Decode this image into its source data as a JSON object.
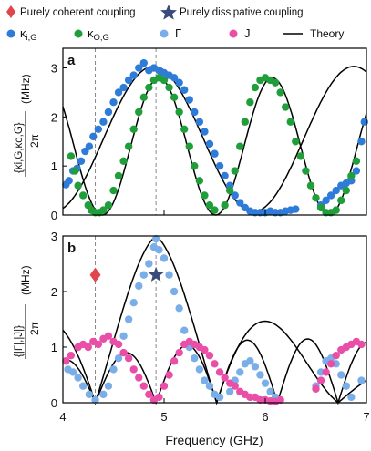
{
  "legend": {
    "row1": [
      {
        "symbol": "diamond",
        "color": "#e0474c",
        "label": "Purely coherent coupling"
      },
      {
        "symbol": "star",
        "color": "#3a4a7a",
        "label": "Purely dissipative coupling"
      }
    ],
    "row2": [
      {
        "symbol": "dot",
        "color": "#2f7bd8",
        "label": "κi,G"
      },
      {
        "symbol": "dot",
        "color": "#1f9e3a",
        "label": "κo,G"
      },
      {
        "symbol": "dot",
        "color": "#7aaee8",
        "label": "Γ"
      },
      {
        "symbol": "dot",
        "color": "#ea4fa8",
        "label": "J"
      },
      {
        "symbol": "line",
        "color": "#000000",
        "label": "Theory"
      }
    ]
  },
  "x_axis": {
    "label": "Frequency (GHz)",
    "ticks": [
      "4",
      "5",
      "6",
      "7"
    ]
  },
  "chart_data": [
    {
      "panel": "a",
      "type": "scatter",
      "ylabel_num": "{κi,G,κo,G}",
      "ylabel_den": "2π",
      "ylabel_unit": "(MHz)",
      "xlim": [
        4,
        7
      ],
      "ylim": [
        0,
        3.4
      ],
      "yticks": [
        "0",
        "1",
        "2",
        "3"
      ],
      "vlines": [
        4.32,
        4.92
      ],
      "series": [
        {
          "name": "κi,G",
          "color": "#2f7bd8",
          "points": [
            [
              4.03,
              0.62
            ],
            [
              4.06,
              0.7
            ],
            [
              4.1,
              0.9
            ],
            [
              4.14,
              0.95
            ],
            [
              4.18,
              1.1
            ],
            [
              4.22,
              1.3
            ],
            [
              4.26,
              1.4
            ],
            [
              4.3,
              1.6
            ],
            [
              4.35,
              1.75
            ],
            [
              4.4,
              1.9
            ],
            [
              4.45,
              2.1
            ],
            [
              4.5,
              2.3
            ],
            [
              4.55,
              2.5
            ],
            [
              4.6,
              2.6
            ],
            [
              4.65,
              2.75
            ],
            [
              4.7,
              2.85
            ],
            [
              4.75,
              3.0
            ],
            [
              4.8,
              3.1
            ],
            [
              4.85,
              2.95
            ],
            [
              4.9,
              3.0
            ],
            [
              4.95,
              2.95
            ],
            [
              5.0,
              2.9
            ],
            [
              5.05,
              2.85
            ],
            [
              5.1,
              2.8
            ],
            [
              5.15,
              2.7
            ],
            [
              5.2,
              2.55
            ],
            [
              5.25,
              2.35
            ],
            [
              5.3,
              2.1
            ],
            [
              5.35,
              1.9
            ],
            [
              5.4,
              1.7
            ],
            [
              5.45,
              1.45
            ],
            [
              5.5,
              1.25
            ],
            [
              5.55,
              1.0
            ],
            [
              5.6,
              0.8
            ],
            [
              5.65,
              0.6
            ],
            [
              5.7,
              0.4
            ],
            [
              5.75,
              0.25
            ],
            [
              5.8,
              0.15
            ],
            [
              5.85,
              0.08
            ],
            [
              5.9,
              0.05
            ],
            [
              5.95,
              0.05
            ],
            [
              6.0,
              0.05
            ],
            [
              6.05,
              0.08
            ],
            [
              6.1,
              0.05
            ],
            [
              6.15,
              0.05
            ],
            [
              6.2,
              0.08
            ],
            [
              6.25,
              0.1
            ],
            [
              6.3,
              0.12
            ],
            [
              6.55,
              0.2
            ],
            [
              6.6,
              0.3
            ],
            [
              6.65,
              0.4
            ],
            [
              6.7,
              0.5
            ],
            [
              6.75,
              0.6
            ],
            [
              6.8,
              0.65
            ],
            [
              6.85,
              0.7
            ],
            [
              6.9,
              0.9
            ],
            [
              6.95,
              1.5
            ],
            [
              6.98,
              1.9
            ]
          ]
        },
        {
          "name": "κo,G",
          "color": "#1f9e3a",
          "points": [
            [
              4.08,
              1.2
            ],
            [
              4.12,
              0.9
            ],
            [
              4.15,
              0.6
            ],
            [
              4.2,
              0.4
            ],
            [
              4.25,
              0.2
            ],
            [
              4.28,
              0.1
            ],
            [
              4.32,
              0.05
            ],
            [
              4.36,
              0.05
            ],
            [
              4.4,
              0.1
            ],
            [
              4.45,
              0.2
            ],
            [
              4.5,
              0.5
            ],
            [
              4.55,
              0.8
            ],
            [
              4.6,
              1.1
            ],
            [
              4.65,
              1.4
            ],
            [
              4.7,
              1.75
            ],
            [
              4.75,
              2.1
            ],
            [
              4.8,
              2.4
            ],
            [
              4.85,
              2.6
            ],
            [
              4.9,
              2.75
            ],
            [
              4.95,
              2.8
            ],
            [
              5.0,
              2.75
            ],
            [
              5.05,
              2.6
            ],
            [
              5.1,
              2.4
            ],
            [
              5.15,
              2.1
            ],
            [
              5.2,
              1.75
            ],
            [
              5.25,
              1.4
            ],
            [
              5.3,
              1.0
            ],
            [
              5.35,
              0.7
            ],
            [
              5.4,
              0.4
            ],
            [
              5.45,
              0.2
            ],
            [
              5.5,
              0.1
            ],
            [
              5.6,
              0.2
            ],
            [
              5.65,
              0.5
            ],
            [
              5.7,
              0.9
            ],
            [
              5.75,
              1.4
            ],
            [
              5.8,
              1.9
            ],
            [
              5.85,
              2.3
            ],
            [
              5.9,
              2.6
            ],
            [
              5.95,
              2.75
            ],
            [
              6.0,
              2.8
            ],
            [
              6.05,
              2.75
            ],
            [
              6.1,
              2.7
            ],
            [
              6.15,
              2.5
            ],
            [
              6.2,
              2.2
            ],
            [
              6.25,
              1.9
            ],
            [
              6.3,
              1.5
            ],
            [
              6.35,
              1.2
            ],
            [
              6.4,
              0.9
            ],
            [
              6.45,
              0.6
            ],
            [
              6.5,
              0.35
            ],
            [
              6.55,
              0.15
            ],
            [
              6.6,
              0.05
            ],
            [
              6.65,
              0.05
            ],
            [
              6.7,
              0.1
            ],
            [
              6.75,
              0.3
            ],
            [
              6.8,
              0.5
            ],
            [
              6.85,
              0.8
            ],
            [
              6.9,
              1.1
            ]
          ]
        }
      ],
      "theory": [
        {
          "name": "κi theory",
          "color": "#000000"
        },
        {
          "name": "κo theory",
          "color": "#000000"
        }
      ]
    },
    {
      "panel": "b",
      "type": "scatter",
      "ylabel_num": "{|Γ|,|J|}",
      "ylabel_den": "2π",
      "ylabel_unit": "(MHz)",
      "xlim": [
        4,
        7
      ],
      "ylim": [
        0,
        3
      ],
      "yticks": [
        "0",
        "1",
        "2",
        "3"
      ],
      "vlines": [
        4.32,
        4.92
      ],
      "markers": [
        {
          "symbol": "diamond",
          "color": "#e0474c",
          "x": 4.32,
          "y": 2.3
        },
        {
          "symbol": "star",
          "color": "#3a4a7a",
          "x": 4.92,
          "y": 2.3
        }
      ],
      "series": [
        {
          "name": "Γ",
          "color": "#7aaee8",
          "points": [
            [
              4.05,
              0.6
            ],
            [
              4.1,
              0.55
            ],
            [
              4.15,
              0.45
            ],
            [
              4.2,
              0.3
            ],
            [
              4.26,
              0.15
            ],
            [
              4.32,
              0.05
            ],
            [
              4.4,
              0.15
            ],
            [
              4.45,
              0.3
            ],
            [
              4.5,
              0.6
            ],
            [
              4.55,
              0.8
            ],
            [
              4.6,
              1.2
            ],
            [
              4.65,
              1.5
            ],
            [
              4.7,
              1.8
            ],
            [
              4.75,
              2.1
            ],
            [
              4.8,
              2.3
            ],
            [
              4.85,
              2.5
            ],
            [
              4.9,
              2.8
            ],
            [
              4.92,
              2.95
            ],
            [
              4.95,
              2.75
            ],
            [
              5.0,
              2.6
            ],
            [
              5.05,
              2.3
            ],
            [
              5.1,
              2.0
            ],
            [
              5.15,
              1.7
            ],
            [
              5.2,
              1.3
            ],
            [
              5.25,
              1.0
            ],
            [
              5.3,
              0.8
            ],
            [
              5.35,
              0.6
            ],
            [
              5.4,
              0.4
            ],
            [
              5.45,
              0.3
            ],
            [
              5.5,
              0.15
            ],
            [
              5.55,
              0.1
            ],
            [
              5.65,
              0.2
            ],
            [
              5.7,
              0.4
            ],
            [
              5.75,
              0.55
            ],
            [
              5.8,
              0.7
            ],
            [
              5.85,
              0.75
            ],
            [
              5.9,
              0.65
            ],
            [
              5.95,
              0.5
            ],
            [
              6.0,
              0.35
            ],
            [
              6.05,
              0.2
            ],
            [
              6.1,
              0.1
            ],
            [
              6.5,
              0.3
            ],
            [
              6.55,
              0.55
            ],
            [
              6.6,
              0.75
            ],
            [
              6.65,
              0.8
            ],
            [
              6.7,
              0.7
            ],
            [
              6.75,
              0.5
            ],
            [
              6.8,
              0.3
            ],
            [
              6.85,
              0.1
            ],
            [
              6.95,
              0.4
            ]
          ]
        },
        {
          "name": "J",
          "color": "#ea4fa8",
          "points": [
            [
              4.03,
              0.75
            ],
            [
              4.08,
              0.85
            ],
            [
              4.15,
              1.0
            ],
            [
              4.2,
              1.05
            ],
            [
              4.25,
              1.0
            ],
            [
              4.3,
              1.1
            ],
            [
              4.35,
              1.05
            ],
            [
              4.4,
              1.15
            ],
            [
              4.45,
              1.2
            ],
            [
              4.5,
              1.1
            ],
            [
              4.55,
              1.05
            ],
            [
              4.6,
              0.9
            ],
            [
              4.65,
              0.8
            ],
            [
              4.7,
              0.6
            ],
            [
              4.75,
              0.45
            ],
            [
              4.8,
              0.3
            ],
            [
              4.85,
              0.15
            ],
            [
              4.9,
              0.05
            ],
            [
              4.95,
              0.1
            ],
            [
              5.0,
              0.3
            ],
            [
              5.05,
              0.5
            ],
            [
              5.1,
              0.75
            ],
            [
              5.15,
              0.9
            ],
            [
              5.2,
              1.05
            ],
            [
              5.25,
              1.1
            ],
            [
              5.3,
              1.05
            ],
            [
              5.35,
              1.0
            ],
            [
              5.4,
              0.95
            ],
            [
              5.45,
              0.85
            ],
            [
              5.5,
              0.7
            ],
            [
              5.55,
              0.55
            ],
            [
              5.6,
              0.45
            ],
            [
              5.65,
              0.35
            ],
            [
              5.7,
              0.3
            ],
            [
              5.75,
              0.2
            ],
            [
              5.8,
              0.15
            ],
            [
              5.85,
              0.1
            ],
            [
              5.9,
              0.1
            ],
            [
              5.95,
              0.05
            ],
            [
              6.0,
              0.05
            ],
            [
              6.05,
              0.03
            ],
            [
              6.1,
              0.02
            ],
            [
              6.15,
              0.05
            ],
            [
              6.5,
              0.25
            ],
            [
              6.55,
              0.4
            ],
            [
              6.6,
              0.55
            ],
            [
              6.65,
              0.7
            ],
            [
              6.7,
              0.85
            ],
            [
              6.75,
              0.95
            ],
            [
              6.8,
              1.0
            ],
            [
              6.85,
              1.05
            ],
            [
              6.9,
              1.1
            ],
            [
              6.95,
              1.05
            ]
          ]
        }
      ],
      "theory": [
        {
          "name": "Γ theory",
          "color": "#000000"
        },
        {
          "name": "J theory",
          "color": "#000000"
        }
      ]
    }
  ]
}
